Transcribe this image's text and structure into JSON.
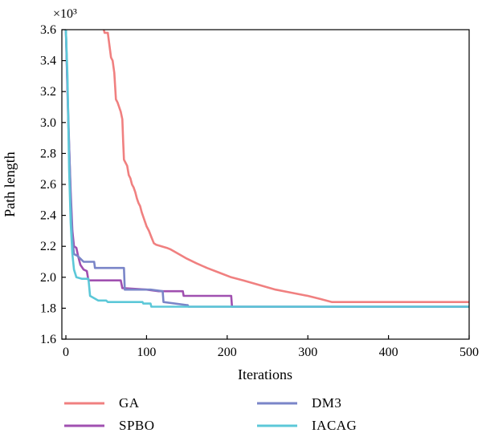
{
  "chart_data": {
    "type": "line",
    "title": "",
    "xlabel": "Iterations",
    "ylabel": "Path length",
    "y_multiplier_label": "×10³",
    "xlim": [
      -5,
      500
    ],
    "ylim": [
      1.6,
      3.6
    ],
    "x_ticks": [
      0,
      100,
      200,
      300,
      400,
      500
    ],
    "x_tick_labels": [
      "0",
      "100",
      "200",
      "300",
      "400",
      "500"
    ],
    "y_ticks": [
      1.6,
      1.8,
      2.0,
      2.2,
      2.4,
      2.6,
      2.8,
      3.0,
      3.2,
      3.4,
      3.6
    ],
    "y_tick_labels": [
      "1.6",
      "1.8",
      "2.0",
      "2.2",
      "2.4",
      "2.6",
      "2.8",
      "3.0",
      "3.2",
      "3.4",
      "3.6"
    ],
    "grid": false,
    "legend_position": "bottom",
    "series": [
      {
        "name": "GA",
        "color": "#f08080",
        "points": [
          [
            47,
            3.6
          ],
          [
            48,
            3.58
          ],
          [
            52,
            3.58
          ],
          [
            54,
            3.5
          ],
          [
            56,
            3.42
          ],
          [
            58,
            3.4
          ],
          [
            60,
            3.32
          ],
          [
            62,
            3.15
          ],
          [
            64,
            3.13
          ],
          [
            66,
            3.1
          ],
          [
            68,
            3.07
          ],
          [
            70,
            3.02
          ],
          [
            71,
            2.88
          ],
          [
            72,
            2.76
          ],
          [
            74,
            2.74
          ],
          [
            76,
            2.72
          ],
          [
            78,
            2.66
          ],
          [
            80,
            2.64
          ],
          [
            82,
            2.6
          ],
          [
            84,
            2.58
          ],
          [
            86,
            2.55
          ],
          [
            88,
            2.51
          ],
          [
            90,
            2.48
          ],
          [
            92,
            2.46
          ],
          [
            94,
            2.42
          ],
          [
            96,
            2.39
          ],
          [
            98,
            2.36
          ],
          [
            100,
            2.33
          ],
          [
            103,
            2.3
          ],
          [
            106,
            2.26
          ],
          [
            109,
            2.22
          ],
          [
            112,
            2.21
          ],
          [
            125,
            2.19
          ],
          [
            130,
            2.18
          ],
          [
            140,
            2.15
          ],
          [
            150,
            2.12
          ],
          [
            162,
            2.09
          ],
          [
            175,
            2.06
          ],
          [
            190,
            2.03
          ],
          [
            205,
            2.0
          ],
          [
            220,
            1.98
          ],
          [
            240,
            1.95
          ],
          [
            260,
            1.92
          ],
          [
            280,
            1.9
          ],
          [
            300,
            1.88
          ],
          [
            315,
            1.86
          ],
          [
            330,
            1.84
          ],
          [
            500,
            1.84
          ]
        ]
      },
      {
        "name": "SPBO",
        "color": "#a050b0",
        "points": [
          [
            0,
            3.6
          ],
          [
            3,
            3.0
          ],
          [
            6,
            2.55
          ],
          [
            8,
            2.3
          ],
          [
            10,
            2.2
          ],
          [
            13,
            2.19
          ],
          [
            15,
            2.14
          ],
          [
            18,
            2.08
          ],
          [
            22,
            2.05
          ],
          [
            26,
            2.04
          ],
          [
            28,
            1.98
          ],
          [
            40,
            1.98
          ],
          [
            68,
            1.98
          ],
          [
            70,
            1.93
          ],
          [
            100,
            1.92
          ],
          [
            115,
            1.91
          ],
          [
            145,
            1.91
          ],
          [
            146,
            1.88
          ],
          [
            205,
            1.88
          ],
          [
            206,
            1.81
          ],
          [
            500,
            1.81
          ]
        ]
      },
      {
        "name": "DM3",
        "color": "#7a85c8",
        "points": [
          [
            0,
            3.6
          ],
          [
            3,
            3.05
          ],
          [
            6,
            2.5
          ],
          [
            8,
            2.25
          ],
          [
            10,
            2.15
          ],
          [
            14,
            2.14
          ],
          [
            18,
            2.12
          ],
          [
            22,
            2.1
          ],
          [
            35,
            2.1
          ],
          [
            36,
            2.06
          ],
          [
            72,
            2.06
          ],
          [
            73,
            1.92
          ],
          [
            105,
            1.92
          ],
          [
            120,
            1.91
          ],
          [
            121,
            1.84
          ],
          [
            150,
            1.82
          ],
          [
            151,
            1.82
          ],
          [
            152,
            1.81
          ],
          [
            500,
            1.81
          ]
        ]
      },
      {
        "name": "IACAG",
        "color": "#5cc8d8",
        "points": [
          [
            0,
            3.6
          ],
          [
            2,
            3.3
          ],
          [
            4,
            2.7
          ],
          [
            6,
            2.35
          ],
          [
            8,
            2.15
          ],
          [
            10,
            2.05
          ],
          [
            13,
            2.0
          ],
          [
            20,
            1.99
          ],
          [
            28,
            1.99
          ],
          [
            30,
            1.88
          ],
          [
            40,
            1.85
          ],
          [
            50,
            1.85
          ],
          [
            52,
            1.84
          ],
          [
            95,
            1.84
          ],
          [
            96,
            1.83
          ],
          [
            105,
            1.83
          ],
          [
            106,
            1.81
          ],
          [
            500,
            1.81
          ]
        ]
      }
    ]
  }
}
